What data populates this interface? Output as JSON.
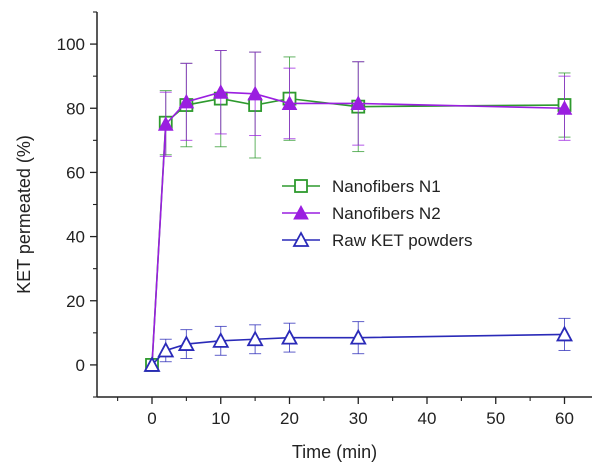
{
  "chart_data": {
    "type": "line",
    "xlabel": "Time (min)",
    "ylabel": "KET permeated (%)",
    "xlim": [
      -8,
      64
    ],
    "ylim": [
      -10,
      110
    ],
    "xticks": [
      0,
      10,
      20,
      30,
      40,
      50,
      60
    ],
    "yticks": [
      0,
      20,
      40,
      60,
      80,
      100
    ],
    "grid": false,
    "legend_position": "center-right",
    "series": [
      {
        "name": "Nanofibers N1",
        "color": "#2e9a2e",
        "marker": "open-square",
        "x": [
          0,
          2,
          5,
          10,
          15,
          20,
          30,
          60
        ],
        "y": [
          0,
          75.5,
          81,
          83,
          81,
          83,
          80.5,
          81
        ],
        "err": [
          0,
          10,
          13,
          15,
          16.5,
          13,
          14,
          10
        ]
      },
      {
        "name": "Nanofibers N2",
        "color": "#9a1ee0",
        "marker": "filled-triangle",
        "x": [
          0,
          2,
          5,
          10,
          15,
          20,
          30,
          60
        ],
        "y": [
          0,
          75,
          82,
          85,
          84.5,
          81.5,
          81.5,
          80
        ],
        "err": [
          0,
          10,
          12,
          13,
          13,
          11,
          13,
          10
        ]
      },
      {
        "name": "Raw KET powders",
        "color": "#2a2ab8",
        "marker": "open-triangle",
        "x": [
          0,
          2,
          5,
          10,
          15,
          20,
          30,
          60
        ],
        "y": [
          0,
          4.5,
          6.5,
          7.5,
          8,
          8.5,
          8.5,
          9.5
        ],
        "err": [
          0,
          3.5,
          4.5,
          4.5,
          4.5,
          4.5,
          5,
          5
        ]
      }
    ]
  }
}
